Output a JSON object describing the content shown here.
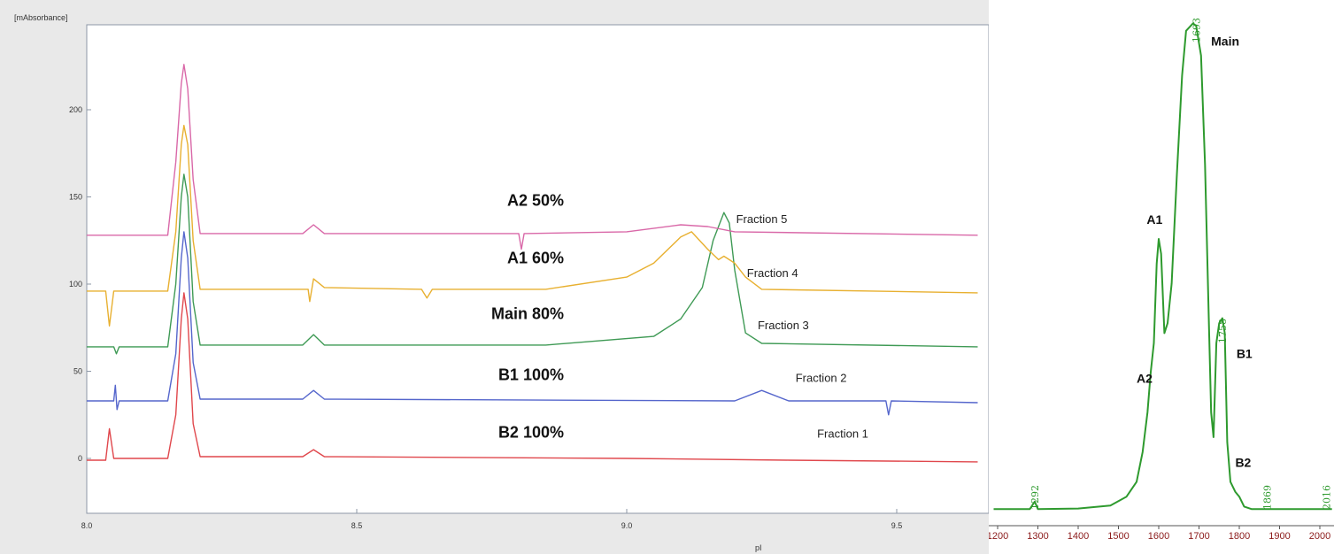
{
  "chart_data": [
    {
      "type": "line",
      "yunit_label": "[mAbsorbance]",
      "xlabel": "pI",
      "xlim": [
        8.0,
        9.65
      ],
      "ylim": [
        -30,
        250
      ],
      "xticks": [
        {
          "value": 8.0,
          "label": "8.0"
        },
        {
          "value": 8.5,
          "label": "8.5"
        },
        {
          "value": 9.0,
          "label": "9.0"
        },
        {
          "value": 9.5,
          "label": "9.5"
        }
      ],
      "yticks": [
        {
          "value": 0,
          "label": "0"
        },
        {
          "value": 50,
          "label": "50"
        },
        {
          "value": 100,
          "label": "100"
        },
        {
          "value": 150,
          "label": "150"
        },
        {
          "value": 200,
          "label": "200"
        }
      ],
      "series": [
        {
          "name": "Fraction 1",
          "annotation": "B2 100%",
          "color": "#e0474c",
          "baseline": 0,
          "label_at": [
            9.4,
            12
          ],
          "annot_at": [
            8.9,
            12
          ],
          "points": [
            [
              8.0,
              -1
            ],
            [
              8.035,
              -1
            ],
            [
              8.042,
              17
            ],
            [
              8.05,
              0
            ],
            [
              8.15,
              0
            ],
            [
              8.165,
              25
            ],
            [
              8.175,
              80
            ],
            [
              8.18,
              95
            ],
            [
              8.187,
              80
            ],
            [
              8.197,
              20
            ],
            [
              8.21,
              1
            ],
            [
              8.4,
              1
            ],
            [
              8.42,
              5
            ],
            [
              8.44,
              1
            ],
            [
              9.0,
              0
            ],
            [
              9.3,
              -1
            ],
            [
              9.65,
              -2
            ]
          ]
        },
        {
          "name": "Fraction 2",
          "annotation": "B1 100%",
          "color": "#5566cc",
          "baseline": 33,
          "label_at": [
            9.36,
            44
          ],
          "annot_at": [
            8.9,
            45
          ],
          "points": [
            [
              8.0,
              33
            ],
            [
              8.05,
              33
            ],
            [
              8.053,
              42
            ],
            [
              8.056,
              28
            ],
            [
              8.06,
              33
            ],
            [
              8.15,
              33
            ],
            [
              8.165,
              60
            ],
            [
              8.175,
              115
            ],
            [
              8.18,
              130
            ],
            [
              8.187,
              115
            ],
            [
              8.197,
              55
            ],
            [
              8.21,
              34
            ],
            [
              8.4,
              34
            ],
            [
              8.42,
              39
            ],
            [
              8.44,
              34
            ],
            [
              9.2,
              33
            ],
            [
              9.25,
              39
            ],
            [
              9.3,
              33
            ],
            [
              9.48,
              33
            ],
            [
              9.485,
              25
            ],
            [
              9.49,
              33
            ],
            [
              9.65,
              32
            ]
          ]
        },
        {
          "name": "Fraction 3",
          "annotation": "Main 80%",
          "color": "#3f9a55",
          "baseline": 64,
          "label_at": [
            9.29,
            74
          ],
          "annot_at": [
            8.9,
            80
          ],
          "points": [
            [
              8.0,
              64
            ],
            [
              8.05,
              64
            ],
            [
              8.055,
              60
            ],
            [
              8.06,
              64
            ],
            [
              8.15,
              64
            ],
            [
              8.165,
              100
            ],
            [
              8.175,
              150
            ],
            [
              8.18,
              163
            ],
            [
              8.187,
              150
            ],
            [
              8.197,
              90
            ],
            [
              8.21,
              65
            ],
            [
              8.4,
              65
            ],
            [
              8.42,
              71
            ],
            [
              8.44,
              65
            ],
            [
              8.85,
              65
            ],
            [
              9.05,
              70
            ],
            [
              9.1,
              80
            ],
            [
              9.14,
              98
            ],
            [
              9.16,
              125
            ],
            [
              9.18,
              141
            ],
            [
              9.19,
              135
            ],
            [
              9.2,
              108
            ],
            [
              9.22,
              72
            ],
            [
              9.25,
              66
            ],
            [
              9.65,
              64
            ]
          ]
        },
        {
          "name": "Fraction 4",
          "annotation": "A1 60%",
          "color": "#e8b030",
          "baseline": 96,
          "label_at": [
            9.27,
            104
          ],
          "annot_at": [
            8.9,
            112
          ],
          "points": [
            [
              8.0,
              96
            ],
            [
              8.035,
              96
            ],
            [
              8.042,
              76
            ],
            [
              8.05,
              96
            ],
            [
              8.15,
              96
            ],
            [
              8.165,
              130
            ],
            [
              8.175,
              180
            ],
            [
              8.18,
              191
            ],
            [
              8.187,
              180
            ],
            [
              8.197,
              125
            ],
            [
              8.21,
              97
            ],
            [
              8.41,
              97
            ],
            [
              8.413,
              90
            ],
            [
              8.42,
              103
            ],
            [
              8.44,
              98
            ],
            [
              8.62,
              97
            ],
            [
              8.63,
              92
            ],
            [
              8.64,
              97
            ],
            [
              8.85,
              97
            ],
            [
              9.0,
              104
            ],
            [
              9.05,
              112
            ],
            [
              9.1,
              127
            ],
            [
              9.12,
              130
            ],
            [
              9.15,
              120
            ],
            [
              9.17,
              114
            ],
            [
              9.18,
              116
            ],
            [
              9.2,
              112
            ],
            [
              9.22,
              104
            ],
            [
              9.25,
              97
            ],
            [
              9.65,
              95
            ]
          ]
        },
        {
          "name": "Fraction 5",
          "annotation": "A2 50%",
          "color": "#d968a8",
          "baseline": 128,
          "label_at": [
            9.25,
            135
          ],
          "annot_at": [
            8.9,
            145
          ],
          "points": [
            [
              8.0,
              128
            ],
            [
              8.15,
              128
            ],
            [
              8.165,
              170
            ],
            [
              8.175,
              215
            ],
            [
              8.18,
              226
            ],
            [
              8.187,
              212
            ],
            [
              8.197,
              160
            ],
            [
              8.21,
              129
            ],
            [
              8.4,
              129
            ],
            [
              8.42,
              134
            ],
            [
              8.44,
              129
            ],
            [
              8.8,
              129
            ],
            [
              8.805,
              120
            ],
            [
              8.81,
              129
            ],
            [
              9.0,
              130
            ],
            [
              9.1,
              134
            ],
            [
              9.15,
              133
            ],
            [
              9.2,
              130
            ],
            [
              9.65,
              128
            ]
          ]
        }
      ]
    },
    {
      "type": "line",
      "xlim": [
        1190,
        2030
      ],
      "ylim": [
        0,
        100
      ],
      "xticks": [
        {
          "value": 1200,
          "label": "1200"
        },
        {
          "value": 1300,
          "label": "1300"
        },
        {
          "value": 1400,
          "label": "1400"
        },
        {
          "value": 1500,
          "label": "1500"
        },
        {
          "value": 1600,
          "label": "1600"
        },
        {
          "value": 1700,
          "label": "1700"
        },
        {
          "value": 1800,
          "label": "1800"
        },
        {
          "value": 1900,
          "label": "1900"
        },
        {
          "value": 2000,
          "label": "2000"
        }
      ],
      "series": [
        {
          "color": "#2e9a2e",
          "points": [
            [
              1190,
              0.5
            ],
            [
              1280,
              0.5
            ],
            [
              1292,
              2
            ],
            [
              1300,
              0.5
            ],
            [
              1400,
              0.6
            ],
            [
              1480,
              1.2
            ],
            [
              1520,
              3
            ],
            [
              1545,
              6
            ],
            [
              1560,
              12
            ],
            [
              1572,
              20
            ],
            [
              1580,
              28
            ],
            [
              1588,
              34
            ],
            [
              1595,
              50
            ],
            [
              1600,
              55
            ],
            [
              1606,
              52
            ],
            [
              1614,
              36
            ],
            [
              1622,
              38
            ],
            [
              1632,
              46
            ],
            [
              1645,
              68
            ],
            [
              1658,
              88
            ],
            [
              1668,
              97
            ],
            [
              1685,
              98.5
            ],
            [
              1693,
              98
            ],
            [
              1705,
              92
            ],
            [
              1715,
              70
            ],
            [
              1724,
              40
            ],
            [
              1730,
              20
            ],
            [
              1736,
              15
            ],
            [
              1743,
              34
            ],
            [
              1750,
              38
            ],
            [
              1758,
              39
            ],
            [
              1764,
              36
            ],
            [
              1770,
              14
            ],
            [
              1778,
              6
            ],
            [
              1790,
              4
            ],
            [
              1800,
              3
            ],
            [
              1812,
              1
            ],
            [
              1830,
              0.5
            ],
            [
              1900,
              0.5
            ],
            [
              1969,
              0.5
            ],
            [
              2030,
              0.5
            ]
          ]
        }
      ],
      "peak_numbers": [
        {
          "x": 1292,
          "label": "1292"
        },
        {
          "x": 1693,
          "label": "1693"
        },
        {
          "x": 1758,
          "label": "1758"
        },
        {
          "x": 1869,
          "label": "1869"
        },
        {
          "x": 2016,
          "label": "2016"
        }
      ],
      "peak_labels": [
        {
          "label": "Main",
          "x": 1730,
          "y": 94
        },
        {
          "label": "A1",
          "x": 1570,
          "y": 58
        },
        {
          "label": "A2",
          "x": 1545,
          "y": 26
        },
        {
          "label": "B1",
          "x": 1793,
          "y": 31
        },
        {
          "label": "B2",
          "x": 1790,
          "y": 9
        }
      ]
    }
  ]
}
